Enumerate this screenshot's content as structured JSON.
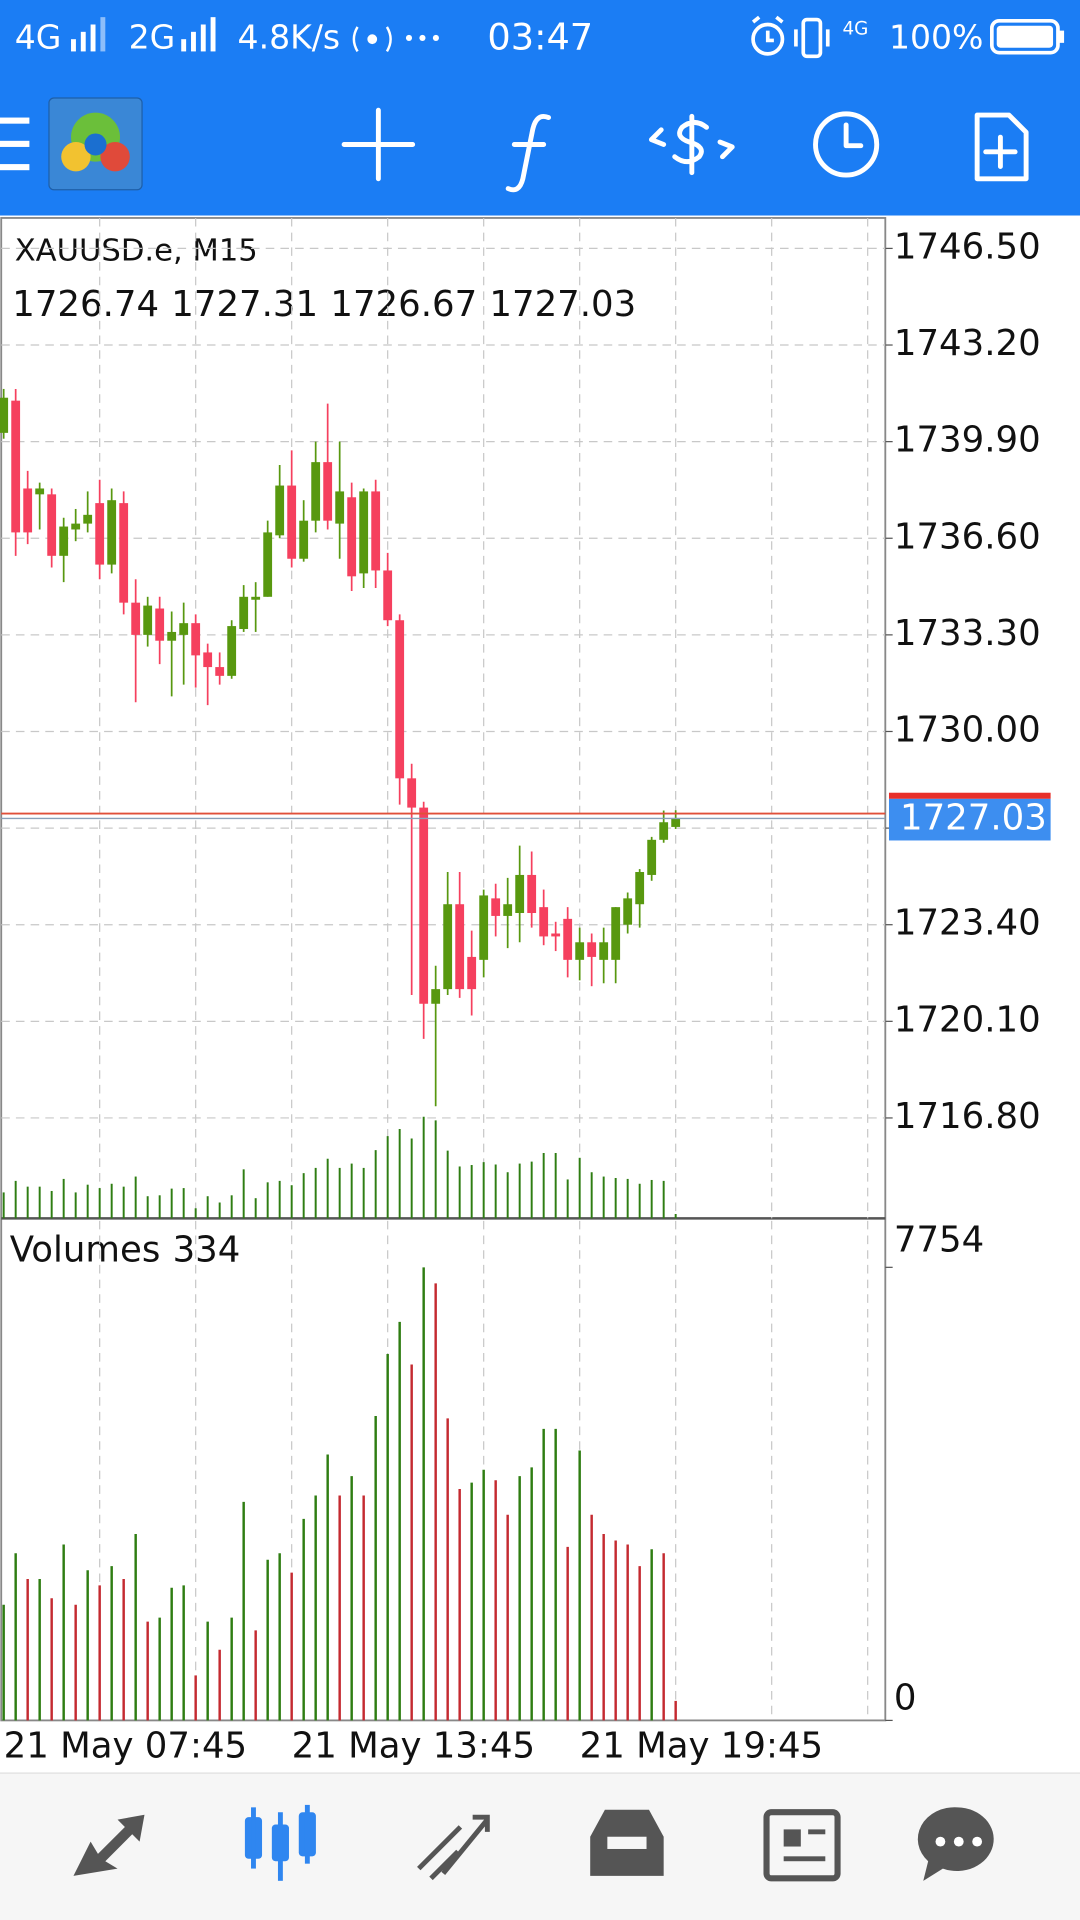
{
  "status_bar": {
    "network1": "4G",
    "network2": "2G",
    "speed": "4.8K/s",
    "time": "03:47",
    "network3": "4G",
    "battery": "100%"
  },
  "chart_data": {
    "type": "candlestick",
    "title": "XAUUSD.e, M15",
    "categories": [
      "21 May 07:45",
      null,
      null,
      null,
      null,
      null,
      null,
      null,
      null,
      null,
      null,
      null,
      null,
      null,
      null,
      null,
      null,
      null,
      null,
      null,
      null,
      null,
      null,
      null,
      "21 May 13:45",
      null,
      null,
      null,
      null,
      null,
      null,
      null,
      null,
      null,
      null,
      null,
      null,
      null,
      null,
      null,
      null,
      null,
      null,
      null,
      null,
      null,
      null,
      null,
      "21 May 19:45",
      null,
      null,
      null,
      null,
      null,
      null,
      null,
      null
    ],
    "open": [
      1740.2,
      1741.3,
      1738.3,
      1738.1,
      1738.1,
      1736.0,
      1736.9,
      1737.1,
      1737.8,
      1735.7,
      1737.8,
      1734.4,
      1733.3,
      1734.2,
      1733.1,
      1733.3,
      1733.7,
      1732.7,
      1732.2,
      1731.9,
      1733.5,
      1734.5,
      1734.6,
      1736.7,
      1738.4,
      1735.9,
      1737.2,
      1739.2,
      1737.1,
      1738.0,
      1735.4,
      1738.2,
      1735.5,
      1733.8,
      1728.4,
      1727.4,
      1720.7,
      1721.2,
      1724.1,
      1722.3,
      1722.2,
      1724.3,
      1723.7,
      1723.8,
      1725.1,
      1724.0,
      1723.1,
      1723.6,
      1722.2,
      1722.8,
      1722.2,
      1722.2,
      1723.4,
      1724.1,
      1725.1,
      1726.3,
      1726.74
    ],
    "high": [
      1741.7,
      1741.7,
      1738.9,
      1738.5,
      1738.3,
      1737.3,
      1737.6,
      1738.2,
      1738.6,
      1738.3,
      1738.2,
      1735.2,
      1734.6,
      1734.6,
      1734.1,
      1734.4,
      1734.0,
      1733.0,
      1732.7,
      1733.8,
      1735.0,
      1735.1,
      1737.2,
      1739.1,
      1739.6,
      1737.9,
      1739.9,
      1741.2,
      1739.9,
      1738.5,
      1738.3,
      1738.6,
      1736.1,
      1734.0,
      1728.9,
      1727.6,
      1722.0,
      1725.2,
      1725.2,
      1723.2,
      1724.6,
      1724.8,
      1725.0,
      1726.1,
      1725.9,
      1724.6,
      1723.5,
      1724.0,
      1723.3,
      1723.1,
      1723.3,
      1724.0,
      1724.5,
      1725.3,
      1726.4,
      1727.3,
      1727.31
    ],
    "low": [
      1740.0,
      1736.0,
      1736.4,
      1736.9,
      1735.6,
      1735.1,
      1736.5,
      1736.8,
      1735.2,
      1735.4,
      1734.0,
      1731.0,
      1732.9,
      1732.3,
      1731.2,
      1731.6,
      1731.5,
      1730.9,
      1731.6,
      1731.8,
      1733.4,
      1733.4,
      1734.6,
      1736.6,
      1735.6,
      1735.8,
      1736.8,
      1736.9,
      1735.9,
      1734.8,
      1734.9,
      1734.9,
      1733.6,
      1727.5,
      1721.0,
      1719.5,
      1717.2,
      1721.0,
      1720.9,
      1720.3,
      1721.6,
      1723.0,
      1722.6,
      1722.8,
      1723.3,
      1722.7,
      1722.5,
      1721.6,
      1721.5,
      1721.3,
      1721.4,
      1721.4,
      1723.1,
      1723.3,
      1724.9,
      1726.2,
      1726.67
    ],
    "close": [
      1741.4,
      1736.8,
      1736.8,
      1738.3,
      1736.0,
      1737.0,
      1737.1,
      1737.4,
      1735.7,
      1737.9,
      1734.4,
      1733.3,
      1734.3,
      1733.1,
      1733.4,
      1733.7,
      1732.6,
      1732.2,
      1731.9,
      1733.6,
      1734.6,
      1734.6,
      1736.8,
      1738.4,
      1735.9,
      1737.2,
      1739.2,
      1737.2,
      1738.2,
      1735.3,
      1738.2,
      1735.5,
      1733.8,
      1728.4,
      1727.4,
      1720.7,
      1721.2,
      1724.1,
      1721.2,
      1721.2,
      1724.4,
      1723.7,
      1724.1,
      1725.1,
      1723.8,
      1723.0,
      1723.0,
      1722.2,
      1722.8,
      1722.3,
      1722.8,
      1724.0,
      1724.3,
      1725.2,
      1726.3,
      1726.9,
      1727.03
    ],
    "up_color": "#58980f",
    "down_color": "#f5405e",
    "ylim": [
      1713.37,
      1747.54
    ],
    "yticks": [
      {
        "value": 1746.5,
        "label": "1746.50"
      },
      {
        "value": 1743.2,
        "label": "1743.20"
      },
      {
        "value": 1739.9,
        "label": "1739.90"
      },
      {
        "value": 1736.6,
        "label": "1736.60"
      },
      {
        "value": 1733.3,
        "label": "1733.30"
      },
      {
        "value": 1730.0,
        "label": "1730.00"
      },
      {
        "value": 1726.7,
        "label": "1726.70"
      },
      {
        "value": 1723.4,
        "label": "1723.40"
      },
      {
        "value": 1720.1,
        "label": "1720.10"
      },
      {
        "value": 1716.8,
        "label": "1716.80"
      }
    ],
    "grid": true,
    "volume_title": "Volumes",
    "volumes": [
      1980,
      2860,
      2420,
      2420,
      2090,
      3010,
      1980,
      2570,
      2310,
      2640,
      2420,
      3190,
      1690,
      1760,
      2270,
      2310,
      770,
      1690,
      1210,
      1760,
      3740,
      1540,
      2750,
      2860,
      2530,
      3450,
      3850,
      4550,
      3850,
      4180,
      3850,
      5210,
      6270,
      6820,
      6090,
      7754,
      7480,
      5170,
      3960,
      4070,
      4290,
      4110,
      3520,
      4180,
      4330,
      4990,
      4990,
      2970,
      4620,
      3520,
      3190,
      3080,
      3010,
      2640,
      2930,
      2860,
      334
    ],
    "volume_up_color": "#2e7d12",
    "volume_down_color": "#c42a30",
    "volume_ylim": [
      0,
      8550
    ],
    "volume_yticks": [
      0,
      7754
    ]
  }
}
